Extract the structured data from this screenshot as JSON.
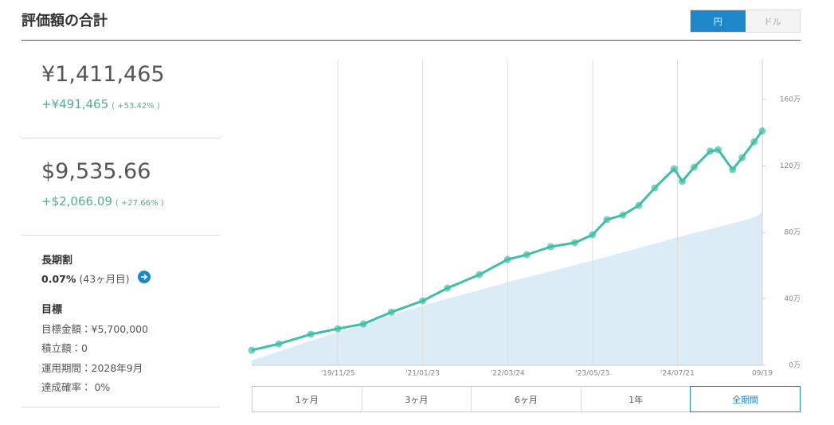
{
  "header": {
    "title": "評価額の合計",
    "currency_toggle": [
      "円",
      "ドル"
    ]
  },
  "summary": {
    "yen": {
      "total": "¥1,411,465",
      "gain": "+¥491,465",
      "gain_pct": "( +53.42% )"
    },
    "usd": {
      "total": "$9,535.66",
      "gain": "+$2,066.09",
      "gain_pct": "( +27.66% )"
    },
    "long_term_discount": {
      "label": "長期割",
      "rate": "0.07%",
      "months": "(43ヶ月目)"
    },
    "goal": {
      "heading": "目標",
      "items": [
        "目標金額：¥5,700,000",
        "積立額：0",
        "運用期間：2028年9月",
        "達成確率： 0%"
      ]
    }
  },
  "chart_data": {
    "type": "line",
    "x": [
      "2018-09-20",
      "2019-02-03",
      "2019-07-13",
      "2019-11-25",
      "2020-04-01",
      "2020-08-19",
      "2021-01-23",
      "2021-05-27",
      "2021-11-03",
      "2022-03-24",
      "2022-06-28",
      "2022-10-26",
      "2023-02-23",
      "2023-05-23",
      "2023-08-03",
      "2023-10-22",
      "2024-01-10",
      "2024-03-30",
      "2024-07-05",
      "2024-08-14",
      "2024-10-13",
      "2025-01-01",
      "2025-02-10",
      "2025-04-23",
      "2025-06-10",
      "2025-08-09",
      "2025-09-19"
    ],
    "series": [
      {
        "style": "line",
        "color": "#3fbfa6",
        "values": [
          9.1,
          12.9,
          18.7,
          22,
          24.9,
          32,
          38.8,
          46.5,
          54.6,
          63.7,
          66.6,
          71.4,
          73.8,
          78.6,
          87.7,
          90.5,
          96.3,
          106.8,
          118.3,
          110.7,
          119.3,
          128.9,
          129.8,
          117.8,
          125,
          134.6,
          141.1
        ]
      },
      {
        "style": "area",
        "color": "#dcecf6",
        "values": [
          3,
          8.4,
          14.8,
          20,
          24.8,
          30.1,
          36,
          40.1,
          45.3,
          50,
          53,
          56.6,
          60.3,
          63,
          65.4,
          68,
          70.6,
          73.2,
          76.5,
          77.8,
          79.6,
          82.1,
          83.3,
          85.5,
          87,
          88.9,
          92
        ]
      }
    ],
    "xlim": [
      "2018-09-20",
      "2025-09-19"
    ],
    "xticks": [
      {
        "value": "2019-11-25",
        "label": "'19/11/25"
      },
      {
        "value": "2021-01-23",
        "label": "'21/01/23"
      },
      {
        "value": "2022-03-24",
        "label": "'22/03/24"
      },
      {
        "value": "2023-05-23",
        "label": "'23/05/23"
      },
      {
        "value": "2024-07-21",
        "label": "'24/07/21"
      },
      {
        "value": "2025-09-19",
        "label": "09/19"
      }
    ],
    "ylim": [
      0,
      184
    ],
    "yticks": [
      {
        "value": 0,
        "label": "0万"
      },
      {
        "value": 40,
        "label": "40万"
      },
      {
        "value": 80,
        "label": "80万"
      },
      {
        "value": 120,
        "label": "120万"
      },
      {
        "value": 160,
        "label": "160万"
      }
    ],
    "grid": true
  },
  "range_buttons": [
    "1ヶ月",
    "3ヶ月",
    "6ヶ月",
    "1年",
    "全期間"
  ]
}
